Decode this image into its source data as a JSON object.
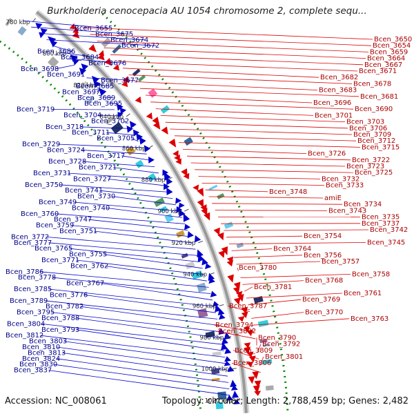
{
  "title": "Burkholderia cenocepacia AU 1054 chromosome 2, complete sequ...",
  "footer": {
    "accession": "Accession: NC_008061",
    "topology": "Topology: circular; Length: 2,788,459 bp; Genes: 2,482"
  },
  "colors": {
    "forward_strand_genes": "#0000cc",
    "reverse_strand_genes": "#dd0000",
    "backbone": "#999999",
    "gc_dots": "#008800"
  },
  "tick_labels": [
    "780 kbp",
    "800 kbp",
    "820 kbp",
    "840 kbp",
    "860 kbp",
    "880 kbp",
    "900 kbp",
    "920 kbp",
    "940 kbp",
    "960 kbp",
    "980 kbp",
    "1000 kbp",
    "1020 kbp"
  ],
  "left_labels": [
    "Bcen_3655",
    "Bcen_3675",
    "Bcen_3674",
    "Bcen_3672",
    "Bcen_3686",
    "Bcen_3684",
    "Bcen_3676",
    "Bcen_3698",
    "Bcen_3691",
    "Bcen_3677",
    "Bcen_3685",
    "Bcen_3697",
    "Bcen_3689",
    "Bcen_3695",
    "Bcen_3719",
    "Bcen_3704",
    "Bcen_3702",
    "Bcen_3718",
    "Bcen_3711",
    "Bcen_3705",
    "Bcen_3729",
    "Bcen_3724",
    "Bcen_3717",
    "Bcen_3728",
    "Bcen_3721",
    "Bcen_3731",
    "Bcen_3727",
    "Bcen_3750",
    "Bcen_3741",
    "Bcen_3730",
    "Bcen_3749",
    "Bcen_3740",
    "Bcen_3760",
    "Bcen_3747",
    "Bcen_3759",
    "Bcen_3751",
    "Bcen_3772",
    "Bcen_3777",
    "Bcen_3765",
    "Bcen_3755",
    "Bcen_3771",
    "Bcen_3762",
    "Bcen_3786",
    "Bcen_3778",
    "Bcen_3767",
    "Bcen_3785",
    "Bcen_3776",
    "Bcen_3789",
    "Bcen_3782",
    "Bcen_3795",
    "Bcen_3788",
    "Bcen_3804",
    "Bcen_3793",
    "Bcen_3812",
    "Bcen_3803",
    "Bcen_3810",
    "Bcen_3813",
    "Bcen_3824",
    "Bcen_3830",
    "Bcen_3837"
  ],
  "right_labels": [
    "Bcen_3650",
    "Bcen_3654",
    "Bcen_3659",
    "Bcen_3664",
    "Bcen_3667",
    "Bcen_3671",
    "Bcen_3682",
    "Bcen_3678",
    "Bcen_3683",
    "Bcen_3681",
    "Bcen_3696",
    "Bcen_3690",
    "Bcen_3701",
    "Bcen_3703",
    "Bcen_3706",
    "Bcen_3709",
    "Bcen_3712",
    "Bcen_3715",
    "Bcen_3726",
    "Bcen_3722",
    "Bcen_3723",
    "Bcen_3725",
    "Bcen_3732",
    "Bcen_3733",
    "Bcen_3748",
    "amiE",
    "Bcen_3734",
    "Bcen_3743",
    "Bcen_3735",
    "Bcen_3737",
    "Bcen_3742",
    "Bcen_3754",
    "Bcen_3745",
    "Bcen_3764",
    "Bcen_3756",
    "Bcen_3757",
    "Bcen_3780",
    "Bcen_3758",
    "Bcen_3768",
    "Bcen_3781",
    "Bcen_3761",
    "Bcen_3769",
    "Bcen_3787",
    "Bcen_3770",
    "Bcen_3763",
    "Bcen_3794",
    "Bcen_3802",
    "Bcen_3790",
    "Bcen_3792",
    "Bcen_3809",
    "Bcen_3801",
    "Bcen_3806"
  ]
}
